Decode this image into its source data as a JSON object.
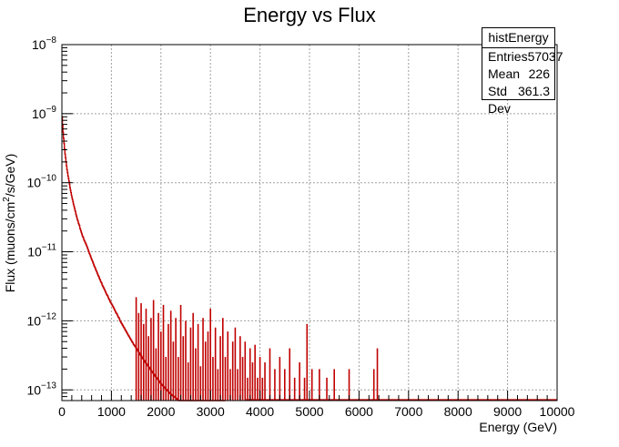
{
  "chart_data": {
    "type": "histogram",
    "title": "Energy vs Flux",
    "xlabel": "Energy (GeV)",
    "ylabel_parts": [
      "Flux (muons/cm",
      "2",
      "/s/GeV)"
    ],
    "xlim": [
      0,
      10000
    ],
    "ylim": [
      7e-14,
      1e-08
    ],
    "yscale": "log",
    "grid": true,
    "line_color": "#c00000",
    "x_ticks": [
      0,
      1000,
      2000,
      3000,
      4000,
      5000,
      6000,
      7000,
      8000,
      9000,
      10000
    ],
    "y_ticks": [
      {
        "base": "10",
        "exp": "−13",
        "value": 1e-13
      },
      {
        "base": "10",
        "exp": "−12",
        "value": 1e-12
      },
      {
        "base": "10",
        "exp": "−11",
        "value": 1e-11
      },
      {
        "base": "10",
        "exp": "−10",
        "value": 1e-10
      },
      {
        "base": "10",
        "exp": "−9",
        "value": 1e-09
      },
      {
        "base": "10",
        "exp": "−8",
        "value": 1e-08
      }
    ],
    "series": [
      {
        "bin_width": 10,
        "x_start": 0,
        "values": [
          9e-10,
          6.8e-10,
          5.4e-10,
          4.4e-10,
          3.7e-10,
          3.1e-10,
          2.6e-10,
          2.3e-10,
          2e-10,
          1.75e-10,
          1.55e-10,
          1.4e-10,
          1.25e-10,
          1.15e-10,
          1.05e-10,
          9.5e-11,
          8.5e-11,
          7.8e-11,
          7.2e-11,
          6.6e-11,
          6.1e-11,
          5.7e-11,
          5.3e-11,
          4.9e-11,
          4.6e-11,
          4.3e-11,
          4e-11,
          3.8e-11,
          3.5e-11,
          3.3e-11,
          3.1e-11,
          2.9e-11,
          2.8e-11,
          2.6e-11,
          2.5e-11,
          2.4e-11,
          2.2e-11,
          2.1e-11,
          2e-11,
          1.9e-11,
          1.8e-11,
          1.7e-11,
          1.65e-11,
          1.6e-11,
          1.5e-11,
          1.45e-11,
          1.4e-11,
          1.35e-11,
          1.3e-11,
          1.25e-11,
          1.2e-11,
          1.15e-11,
          1.1e-11,
          1.05e-11,
          1e-11,
          9.5e-12,
          9.2e-12,
          8.8e-12,
          8.4e-12,
          8e-12,
          7.7e-12,
          7.4e-12,
          7.1e-12,
          6.8e-12,
          6.5e-12,
          6.2e-12,
          6e-12,
          5.8e-12,
          5.5e-12,
          5.3e-12,
          5.1e-12,
          4.9e-12,
          4.7e-12,
          4.5e-12,
          4.4e-12,
          4.2e-12,
          4e-12,
          3.9e-12,
          3.7e-12,
          3.6e-12,
          3.5e-12,
          3.3e-12,
          3.2e-12,
          3.1e-12,
          3e-12,
          2.9e-12,
          2.8e-12,
          2.7e-12,
          2.6e-12,
          2.5e-12,
          2.4e-12,
          2.35e-12,
          2.3e-12,
          2.2e-12,
          2.1e-12,
          2.05e-12,
          2e-12,
          1.9e-12,
          1.85e-12,
          1.8e-12,
          1.75e-12,
          1.7e-12,
          1.65e-12,
          1.6e-12,
          1.55e-12,
          1.5e-12,
          1.45e-12,
          1.4e-12,
          1.35e-12,
          1.3e-12,
          1.28e-12,
          1.25e-12,
          1.2e-12,
          1.15e-12,
          1.12e-12,
          1.1e-12,
          1.05e-12,
          1e-12,
          9.8e-13,
          9.5e-13,
          9.2e-13,
          9e-13,
          8.7e-13,
          8.5e-13,
          8.2e-13,
          8e-13,
          7.8e-13,
          7.5e-13,
          7.3e-13,
          7.1e-13,
          6.9e-13,
          6.7e-13,
          6.5e-13,
          6.3e-13,
          6.1e-13,
          6e-13,
          5.8e-13,
          5.6e-13,
          5.5e-13,
          5.3e-13,
          5.2e-13,
          5e-13,
          4.9e-13,
          4.8e-13,
          4.6e-13,
          4.5e-13,
          4.4e-13,
          4.3e-13,
          4.2e-13,
          4.1e-13,
          4e-13,
          3.9e-13,
          3.8e-13,
          3.7e-13,
          3.6e-13,
          3.5e-13,
          3.4e-13,
          3.3e-13,
          3.2e-13,
          3.15e-13,
          3.1e-13,
          3e-13,
          2.9e-13,
          2.85e-13,
          2.8e-13,
          2.7e-13,
          2.65e-13,
          2.6e-13,
          2.5e-13,
          2.45e-13,
          2.4e-13,
          2.35e-13,
          2.3e-13,
          2.25e-13,
          2.2e-13,
          2.15e-13,
          2.1e-13,
          2.05e-13,
          2e-13,
          1.95e-13,
          1.9e-13,
          1.86e-13,
          1.82e-13,
          1.78e-13,
          1.74e-13,
          1.7e-13,
          1.66e-13,
          1.62e-13,
          1.58e-13,
          1.55e-13,
          1.52e-13,
          1.49e-13,
          1.46e-13,
          1.43e-13,
          1.4e-13,
          1.37e-13,
          1.34e-13,
          1.31e-13,
          1.28e-13,
          1.25e-13,
          1.22e-13,
          1.2e-13,
          1.18e-13,
          1.16e-13,
          1.14e-13,
          1.12e-13,
          1.1e-13,
          1.08e-13,
          1.06e-13,
          1.04e-13,
          1.02e-13,
          1e-13,
          9.9e-14,
          9.7e-14,
          9.6e-14,
          9.4e-14,
          9.2e-14,
          9e-14,
          8.9e-14,
          8.8e-14,
          8.6e-14,
          8.5e-14,
          8.4e-14,
          8.3e-14,
          8.2e-14,
          8.1e-14,
          8e-14,
          7.9e-14,
          7.8e-14,
          7.7e-14,
          7.6e-14,
          7.5e-14,
          7.4e-14,
          7.3e-14,
          7.2e-14,
          7.1e-14,
          7e-14,
          7e-14,
          7e-14,
          7e-14,
          7e-14,
          7e-14,
          7e-14,
          7e-14,
          7e-14,
          7e-14,
          7e-14,
          7e-14,
          7e-14,
          7e-14,
          7e-14,
          7e-14,
          7e-14,
          7e-14,
          7e-14,
          7e-14,
          7e-14,
          7e-14,
          7e-14,
          7e-14,
          7e-14,
          7e-14,
          7e-14,
          7e-14,
          7e-14,
          7e-14,
          7e-14,
          7e-14,
          7e-14,
          7e-14,
          7e-14,
          7e-14,
          7e-14,
          7e-14,
          7e-14,
          7e-14,
          7e-14,
          7e-14,
          7e-14,
          7e-14,
          7e-14,
          7e-14,
          7e-14,
          7e-14,
          7e-14,
          7e-14,
          7e-14,
          7e-14,
          7e-14,
          7e-14,
          7e-14,
          7e-14,
          7e-14,
          7e-14,
          7e-14,
          7e-14,
          7e-14,
          7e-14,
          7e-14,
          7e-14,
          7e-14,
          7e-14,
          7e-14,
          7e-14,
          7e-14,
          7e-14,
          7e-14,
          7e-14,
          7e-14,
          7e-14,
          7e-14,
          7e-14,
          7e-14,
          7e-14,
          7e-14,
          7e-14,
          7e-14,
          7e-14,
          7e-14,
          7e-14,
          7e-14,
          7e-14,
          7e-14,
          7e-14,
          7e-14,
          7e-14,
          7e-14,
          7e-14,
          7e-14,
          7e-14
        ],
        "sparse_tail": [
          {
            "x": 1500,
            "y": 2.2e-12
          },
          {
            "x": 1550,
            "y": 1.3e-12
          },
          {
            "x": 1600,
            "y": 1.8e-12
          },
          {
            "x": 1650,
            "y": 9e-13
          },
          {
            "x": 1700,
            "y": 1.5e-12
          },
          {
            "x": 1750,
            "y": 6e-13
          },
          {
            "x": 1800,
            "y": 1.1e-12
          },
          {
            "x": 1850,
            "y": 2e-12
          },
          {
            "x": 1900,
            "y": 4e-13
          },
          {
            "x": 1950,
            "y": 1.3e-12
          },
          {
            "x": 2000,
            "y": 7e-13
          },
          {
            "x": 2050,
            "y": 1.7e-12
          },
          {
            "x": 2100,
            "y": 3e-13
          },
          {
            "x": 2150,
            "y": 9e-13
          },
          {
            "x": 2200,
            "y": 1.4e-12
          },
          {
            "x": 2250,
            "y": 5e-13
          },
          {
            "x": 2300,
            "y": 1.1e-12
          },
          {
            "x": 2350,
            "y": 3e-13
          },
          {
            "x": 2400,
            "y": 1.7e-12
          },
          {
            "x": 2450,
            "y": 6e-13
          },
          {
            "x": 2500,
            "y": 1e-12
          },
          {
            "x": 2550,
            "y": 2.5e-13
          },
          {
            "x": 2600,
            "y": 8e-13
          },
          {
            "x": 2650,
            "y": 1.3e-12
          },
          {
            "x": 2700,
            "y": 4e-13
          },
          {
            "x": 2750,
            "y": 9e-13
          },
          {
            "x": 2800,
            "y": 2.2e-13
          },
          {
            "x": 2850,
            "y": 1.1e-12
          },
          {
            "x": 2900,
            "y": 5e-13
          },
          {
            "x": 2950,
            "y": 7e-13
          },
          {
            "x": 3000,
            "y": 1.5e-12
          },
          {
            "x": 3050,
            "y": 3e-13
          },
          {
            "x": 3100,
            "y": 8e-13
          },
          {
            "x": 3150,
            "y": 2e-13
          },
          {
            "x": 3200,
            "y": 6e-13
          },
          {
            "x": 3250,
            "y": 1.1e-12
          },
          {
            "x": 3300,
            "y": 3e-13
          },
          {
            "x": 3350,
            "y": 7e-13
          },
          {
            "x": 3400,
            "y": 2e-13
          },
          {
            "x": 3450,
            "y": 5e-13
          },
          {
            "x": 3500,
            "y": 8e-13
          },
          {
            "x": 3550,
            "y": 2e-13
          },
          {
            "x": 3600,
            "y": 6e-13
          },
          {
            "x": 3650,
            "y": 3e-13
          },
          {
            "x": 3700,
            "y": 5e-13
          },
          {
            "x": 3750,
            "y": 1.5e-13
          },
          {
            "x": 3800,
            "y": 4e-13
          },
          {
            "x": 3850,
            "y": 2.5e-13
          },
          {
            "x": 3900,
            "y": 4.5e-13
          },
          {
            "x": 3950,
            "y": 1.5e-13
          },
          {
            "x": 4000,
            "y": 3e-13
          },
          {
            "x": 4050,
            "y": 1.5e-13
          },
          {
            "x": 4100,
            "y": 2.5e-13
          },
          {
            "x": 4200,
            "y": 4e-13
          },
          {
            "x": 4300,
            "y": 2e-13
          },
          {
            "x": 4400,
            "y": 3e-13
          },
          {
            "x": 4500,
            "y": 2e-13
          },
          {
            "x": 4600,
            "y": 4e-13
          },
          {
            "x": 4700,
            "y": 1.5e-13
          },
          {
            "x": 4800,
            "y": 2.5e-13
          },
          {
            "x": 4900,
            "y": 1.5e-13
          },
          {
            "x": 4950,
            "y": 9e-13
          },
          {
            "x": 5050,
            "y": 2e-13
          },
          {
            "x": 5200,
            "y": 2e-13
          },
          {
            "x": 5350,
            "y": 1.5e-13
          },
          {
            "x": 5500,
            "y": 2e-13
          },
          {
            "x": 5800,
            "y": 2e-13
          },
          {
            "x": 6300,
            "y": 2e-13
          },
          {
            "x": 6370,
            "y": 4e-13
          }
        ]
      }
    ]
  },
  "stats": {
    "title": "histEnergy",
    "rows": [
      {
        "label": "Entries",
        "value": "57037"
      },
      {
        "label": "Mean",
        "value": "226"
      },
      {
        "label": "Std Dev",
        "value": "361.3"
      }
    ]
  }
}
